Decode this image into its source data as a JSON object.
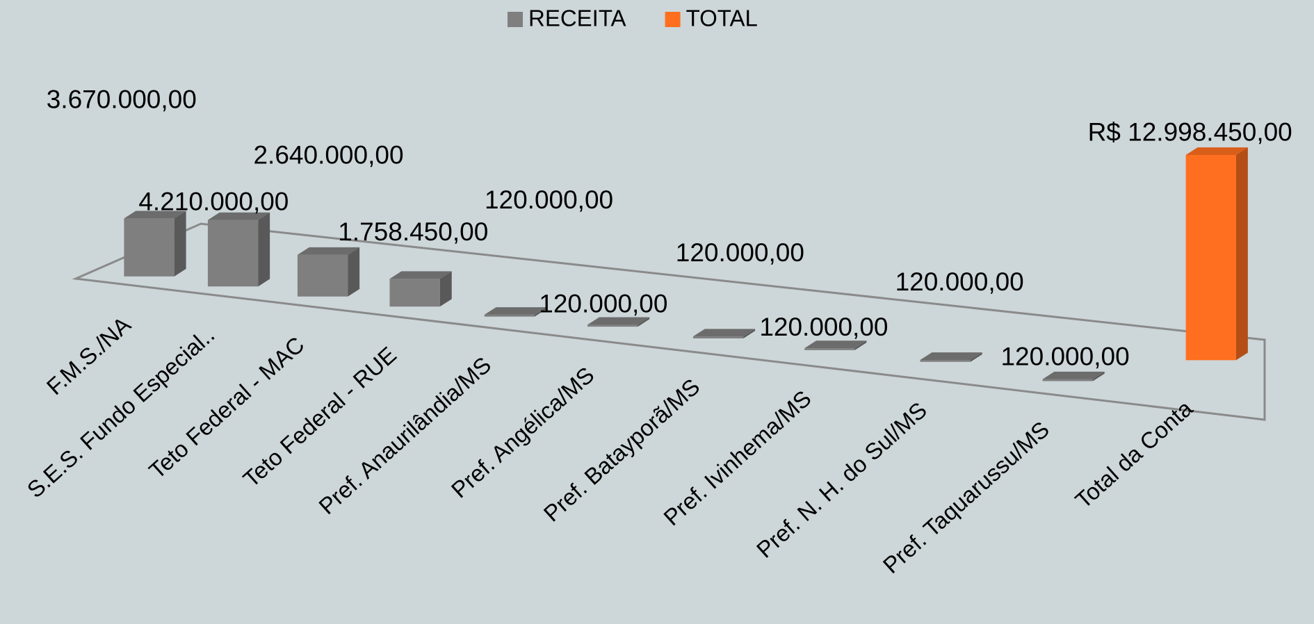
{
  "chart_data": {
    "type": "bar3d",
    "categories": [
      "F.M.S./NA",
      "S.E.S. Fundo Especial..",
      "Teto Federal - MAC",
      "Teto Federal - RUE",
      "Pref. Anaurilândia/MS",
      "Pref. Angélica/MS",
      "Pref. Batayporã/MS",
      "Pref. Ivinhema/MS",
      "Pref. N. H. do Sul/MS",
      "Pref. Taquarussu/MS",
      "Total da Conta"
    ],
    "series": [
      {
        "name": "RECEITA",
        "color": "#7f7f7f",
        "values": [
          3670000,
          4210000,
          2640000,
          1758450,
          120000,
          120000,
          120000,
          120000,
          120000,
          120000,
          null
        ],
        "value_labels": [
          "3.670.000,00",
          "4.210.000,00",
          "2.640.000,00",
          "1.758.450,00",
          "120.000,00",
          "120.000,00",
          "120.000,00",
          "120.000,00",
          "120.000,00",
          "120.000,00",
          null
        ]
      },
      {
        "name": "TOTAL",
        "color": "#ff6f1f",
        "values": [
          null,
          null,
          null,
          null,
          null,
          null,
          null,
          null,
          null,
          null,
          12998450
        ],
        "value_labels": [
          null,
          null,
          null,
          null,
          null,
          null,
          null,
          null,
          null,
          null,
          "R$ 12.998.450,00"
        ]
      }
    ],
    "legend": "top"
  }
}
